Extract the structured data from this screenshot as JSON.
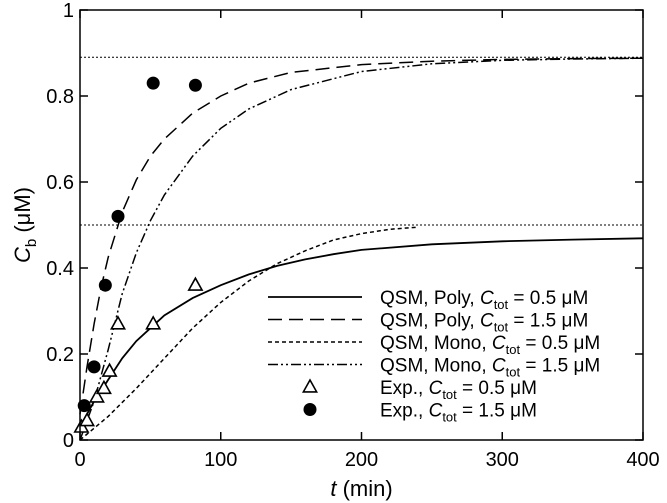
{
  "chart_data": {
    "type": "line",
    "xlabel": {
      "italic": "t",
      "rest": " (min)"
    },
    "ylabel": {
      "italic": "C",
      "sub": "b",
      "rest": "  (μM)"
    },
    "xlim": [
      0,
      400
    ],
    "ylim": [
      0,
      1
    ],
    "xticks": [
      0,
      100,
      200,
      300,
      400
    ],
    "yticks": [
      0,
      0.2,
      0.4,
      0.6,
      0.8,
      1
    ],
    "xtick_labels": [
      "0",
      "100",
      "200",
      "300",
      "400"
    ],
    "ytick_labels": [
      "0",
      "0.2",
      "0.4",
      "0.6",
      "0.8",
      "1"
    ],
    "hlines": [
      0.89,
      0.5
    ],
    "series": [
      {
        "name": "QSM, Poly, C_tot = 0.5 μM",
        "style": "solid",
        "x": [
          0,
          5,
          10,
          15,
          20,
          30,
          40,
          50,
          60,
          80,
          100,
          120,
          140,
          160,
          180,
          200,
          250,
          300,
          350,
          400
        ],
        "y": [
          0.03,
          0.06,
          0.09,
          0.115,
          0.14,
          0.19,
          0.23,
          0.26,
          0.29,
          0.33,
          0.36,
          0.385,
          0.405,
          0.42,
          0.432,
          0.442,
          0.455,
          0.462,
          0.466,
          0.469
        ]
      },
      {
        "name": "QSM, Poly, C_tot = 1.5 μM",
        "style": "dashed",
        "x": [
          0,
          5,
          10,
          15,
          20,
          30,
          40,
          50,
          60,
          80,
          100,
          120,
          150,
          200,
          250,
          300,
          350,
          400
        ],
        "y": [
          0.06,
          0.17,
          0.27,
          0.355,
          0.425,
          0.53,
          0.605,
          0.66,
          0.7,
          0.76,
          0.8,
          0.83,
          0.855,
          0.873,
          0.881,
          0.885,
          0.887,
          0.888
        ]
      },
      {
        "name": "QSM, Mono, C_tot = 0.5 μM",
        "style": "dotted",
        "x": [
          0,
          20,
          40,
          60,
          80,
          100,
          120,
          140,
          160,
          180,
          200,
          220,
          240
        ],
        "y": [
          0.0,
          0.055,
          0.12,
          0.19,
          0.26,
          0.32,
          0.37,
          0.41,
          0.44,
          0.465,
          0.48,
          0.49,
          0.495
        ]
      },
      {
        "name": "QSM, Mono, C_tot = 1.5 μM",
        "style": "dashdotdot",
        "x": [
          0,
          10,
          20,
          30,
          40,
          50,
          60,
          80,
          100,
          120,
          150,
          200,
          250,
          300,
          350,
          400
        ],
        "y": [
          0.0,
          0.09,
          0.21,
          0.34,
          0.435,
          0.51,
          0.57,
          0.66,
          0.725,
          0.77,
          0.815,
          0.857,
          0.875,
          0.883,
          0.886,
          0.888
        ]
      },
      {
        "name": "Exp., C_tot = 0.5 μM",
        "style": "marker-triangle",
        "x": [
          1,
          5,
          12,
          17,
          21,
          27,
          52,
          82
        ],
        "y": [
          0.03,
          0.045,
          0.1,
          0.12,
          0.16,
          0.27,
          0.27,
          0.36
        ]
      },
      {
        "name": "Exp., C_tot = 1.5 μM",
        "style": "marker-circle",
        "x": [
          3,
          10,
          18,
          27,
          52,
          82
        ],
        "y": [
          0.08,
          0.17,
          0.36,
          0.52,
          0.83,
          0.825
        ]
      }
    ],
    "legend": {
      "placement": "bottom-right",
      "entries": [
        {
          "pre": "QSM, Poly, ",
          "sub": "tot",
          "post": " = 0.5 μM"
        },
        {
          "pre": "QSM, Poly, ",
          "sub": "tot",
          "post": " = 1.5 μM"
        },
        {
          "pre": "QSM, Mono, ",
          "sub": "tot",
          "post": " = 0.5 μM"
        },
        {
          "pre": "QSM, Mono, ",
          "sub": "tot",
          "post": " = 1.5 μM"
        },
        {
          "pre": "Exp., ",
          "sub": "tot",
          "post": " = 0.5 μM"
        },
        {
          "pre": "Exp., ",
          "sub": "tot",
          "post": " = 1.5 μM"
        }
      ],
      "italic_letter": "C"
    }
  }
}
